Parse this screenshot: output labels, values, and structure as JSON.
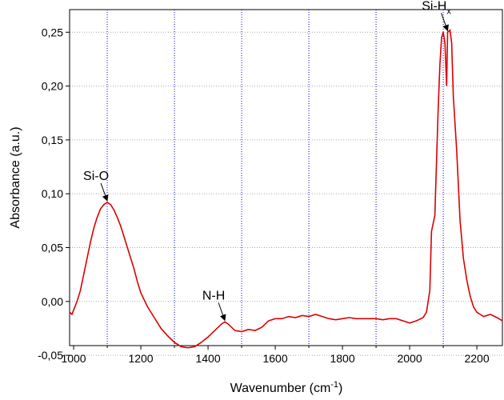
{
  "chart_data": {
    "type": "line",
    "xlabel": [
      "Wavenumber (cm",
      "-1",
      ")"
    ],
    "ylabel": "Absorbance (a.u.)",
    "xlim": [
      988,
      2276
    ],
    "ylim": [
      -0.041,
      0.271
    ],
    "xticks": [
      1000,
      1200,
      1400,
      1600,
      1800,
      2000,
      2200
    ],
    "xminor": [
      1100,
      1300,
      1500,
      1700,
      1900,
      2100
    ],
    "yticks": [
      {
        "value": -0.05,
        "label": "-0,05"
      },
      {
        "value": 0,
        "label": "0,00"
      },
      {
        "value": 0.05,
        "label": "0,05"
      },
      {
        "value": 0.1,
        "label": "0,10"
      },
      {
        "value": 0.15,
        "label": "0,15"
      },
      {
        "value": 0.2,
        "label": "0,20"
      },
      {
        "value": 0.25,
        "label": "0,25"
      }
    ],
    "grid": true,
    "series": [
      {
        "color": "#dd0000",
        "x": [
          988,
          995,
          1000,
          1010,
          1020,
          1030,
          1040,
          1050,
          1060,
          1070,
          1080,
          1090,
          1100,
          1110,
          1120,
          1130,
          1140,
          1150,
          1160,
          1170,
          1180,
          1190,
          1200,
          1220,
          1240,
          1260,
          1280,
          1300,
          1320,
          1340,
          1360,
          1380,
          1400,
          1420,
          1440,
          1450,
          1460,
          1480,
          1500,
          1520,
          1540,
          1560,
          1580,
          1600,
          1620,
          1640,
          1660,
          1680,
          1700,
          1720,
          1740,
          1760,
          1780,
          1800,
          1820,
          1840,
          1860,
          1880,
          1900,
          1920,
          1940,
          1960,
          1980,
          2000,
          2020,
          2040,
          2050,
          2060,
          2065,
          2075,
          2080,
          2085,
          2090,
          2095,
          2100,
          2105,
          2110,
          2113,
          2120,
          2125,
          2130,
          2140,
          2150,
          2160,
          2170,
          2180,
          2190,
          2200,
          2220,
          2240,
          2260,
          2276
        ],
        "values": [
          -0.01,
          -0.012,
          -0.008,
          0.0,
          0.01,
          0.025,
          0.04,
          0.055,
          0.068,
          0.078,
          0.086,
          0.09,
          0.092,
          0.09,
          0.085,
          0.078,
          0.07,
          0.06,
          0.05,
          0.04,
          0.03,
          0.018,
          0.008,
          -0.005,
          -0.015,
          -0.025,
          -0.032,
          -0.038,
          -0.042,
          -0.043,
          -0.042,
          -0.038,
          -0.033,
          -0.027,
          -0.021,
          -0.019,
          -0.021,
          -0.027,
          -0.028,
          -0.026,
          -0.027,
          -0.024,
          -0.018,
          -0.016,
          -0.016,
          -0.014,
          -0.015,
          -0.013,
          -0.014,
          -0.012,
          -0.014,
          -0.016,
          -0.017,
          -0.016,
          -0.015,
          -0.016,
          -0.016,
          -0.016,
          -0.016,
          -0.017,
          -0.016,
          -0.016,
          -0.018,
          -0.02,
          -0.018,
          -0.015,
          -0.01,
          0.01,
          0.065,
          0.08,
          0.13,
          0.18,
          0.22,
          0.245,
          0.25,
          0.24,
          0.2,
          0.25,
          0.252,
          0.24,
          0.19,
          0.14,
          0.075,
          0.04,
          0.02,
          0.005,
          -0.005,
          -0.01,
          -0.014,
          -0.012,
          -0.015,
          -0.018
        ]
      }
    ],
    "annotations": [
      {
        "text": "Si-O",
        "x": 1100,
        "y": 0.092
      },
      {
        "text": "N-H",
        "x": 1450,
        "y": -0.019
      },
      {
        "text": "Si-H",
        "sub": "x",
        "x": 2113,
        "y": 0.25
      }
    ]
  }
}
